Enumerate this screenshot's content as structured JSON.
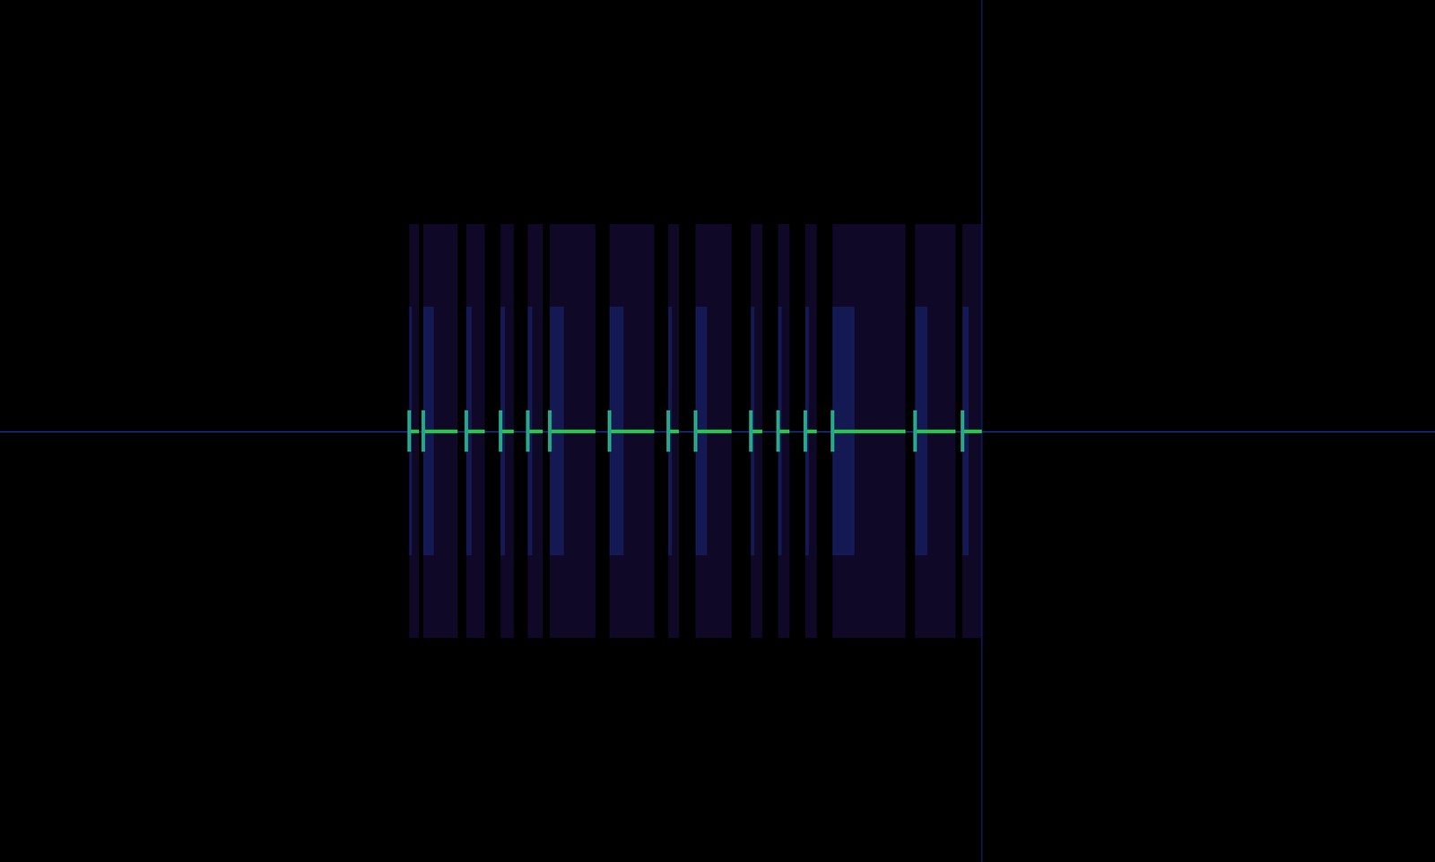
{
  "chart_data": {
    "type": "spectrogram",
    "tick_labels": false,
    "xlim": [
      0,
      100
    ],
    "ylim": [
      -50,
      50
    ],
    "carrier": 0,
    "bandwidth": 24,
    "pulses": [
      {
        "start": 28.5,
        "end": 29.2
      },
      {
        "start": 29.5,
        "end": 31.9
      },
      {
        "start": 32.5,
        "end": 33.8
      },
      {
        "start": 34.9,
        "end": 35.8
      },
      {
        "start": 36.8,
        "end": 37.8
      },
      {
        "start": 38.3,
        "end": 41.5
      },
      {
        "start": 42.5,
        "end": 45.6
      },
      {
        "start": 46.6,
        "end": 47.3
      },
      {
        "start": 48.5,
        "end": 51.0
      },
      {
        "start": 52.3,
        "end": 53.1
      },
      {
        "start": 54.2,
        "end": 55.0
      },
      {
        "start": 56.1,
        "end": 56.9
      },
      {
        "start": 58.0,
        "end": 63.1
      },
      {
        "start": 63.8,
        "end": 66.6
      },
      {
        "start": 67.1,
        "end": 68.4
      }
    ],
    "color": "#22c84a"
  }
}
